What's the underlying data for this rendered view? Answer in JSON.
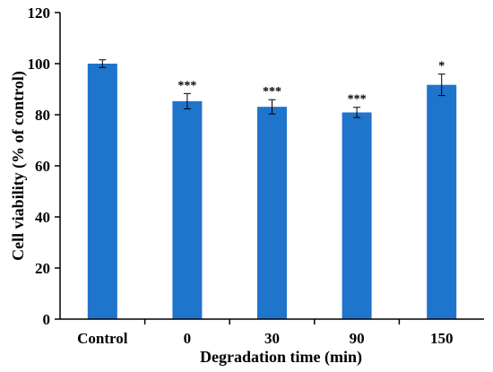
{
  "chart_data": {
    "type": "bar",
    "title": "",
    "xlabel": "Degradation time (min)",
    "ylabel": "Cell viability (% of control)",
    "categories": [
      "Control",
      "0",
      "30",
      "90",
      "150"
    ],
    "values": [
      100,
      85.3,
      83.1,
      80.9,
      91.7
    ],
    "errors": [
      1.5,
      3.0,
      2.8,
      2.0,
      4.2
    ],
    "significance": [
      "",
      "***",
      "***",
      "***",
      "*"
    ],
    "ylim": [
      0,
      120
    ],
    "yticks": [
      "0",
      "20",
      "40",
      "60",
      "80",
      "100",
      "120"
    ],
    "grid": false,
    "legend": "none",
    "bar_color": "#1f74cc"
  }
}
